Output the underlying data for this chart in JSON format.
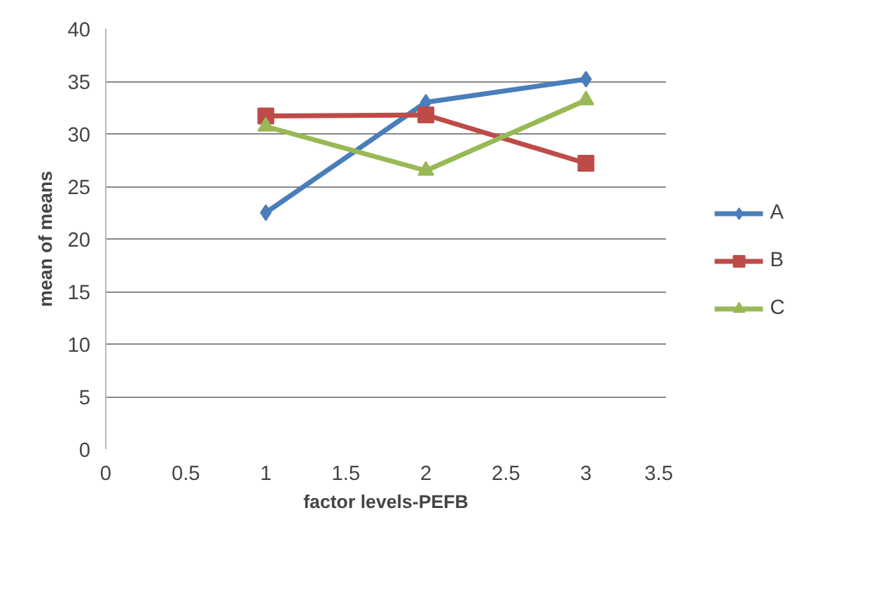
{
  "chart_data": {
    "type": "line",
    "xlabel": "factor levels-PEFB",
    "ylabel": "mean of means",
    "x": [
      1,
      2,
      3
    ],
    "series": [
      {
        "name": "A",
        "color": "#4a7ebb",
        "values": [
          22.5,
          33.0,
          35.2
        ],
        "marker": "diamond"
      },
      {
        "name": "B",
        "color": "#be4b48",
        "values": [
          31.7,
          31.8,
          27.2
        ],
        "marker": "square"
      },
      {
        "name": "C",
        "color": "#98b954",
        "values": [
          30.7,
          26.5,
          33.2
        ],
        "marker": "triangle"
      }
    ],
    "xlim": [
      0,
      3.5
    ],
    "xticks": [
      0,
      0.5,
      1,
      1.5,
      2,
      2.5,
      3,
      3.5
    ],
    "ylim": [
      0,
      40
    ],
    "yticks": [
      0,
      5,
      10,
      15,
      20,
      25,
      30,
      35,
      40
    ],
    "grid": "y",
    "legend": "right",
    "line_style": "solid"
  }
}
